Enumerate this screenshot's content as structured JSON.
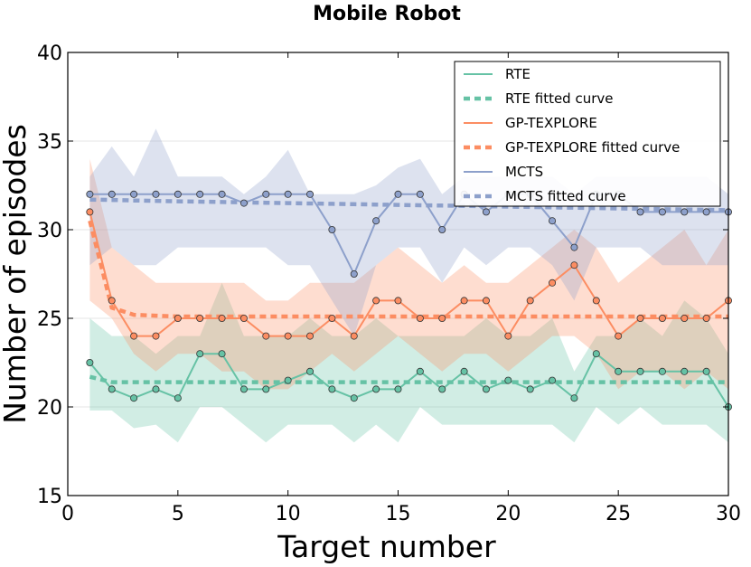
{
  "chart_data": {
    "type": "line",
    "title": "Mobile Robot",
    "xlabel": "Target number",
    "ylabel": "Number of episodes",
    "xlim": [
      0,
      30
    ],
    "ylim": [
      15,
      40
    ],
    "xticks": [
      0,
      5,
      10,
      15,
      20,
      25,
      30
    ],
    "yticks": [
      15,
      20,
      25,
      30,
      35,
      40
    ],
    "grid": "horizontal",
    "legend_position": "top-right",
    "x": [
      1,
      2,
      3,
      4,
      5,
      6,
      7,
      8,
      9,
      10,
      11,
      12,
      13,
      14,
      15,
      16,
      17,
      18,
      19,
      20,
      21,
      22,
      23,
      24,
      25,
      26,
      27,
      28,
      29,
      30
    ],
    "series": [
      {
        "name": "RTE",
        "color": "#66c2a5",
        "values": [
          22.5,
          21,
          20.5,
          21,
          20.5,
          23,
          23,
          21,
          21,
          21.5,
          22,
          21,
          20.5,
          21,
          21,
          22,
          21,
          22,
          21,
          21.5,
          21,
          21.5,
          20.5,
          23,
          22,
          22,
          22,
          22,
          22,
          20
        ],
        "upper": [
          25,
          24,
          24,
          23,
          24,
          24,
          27,
          24,
          24,
          24,
          25,
          24,
          24,
          25,
          24,
          24,
          24,
          24,
          25,
          24,
          24,
          25,
          22,
          24,
          24,
          25,
          24,
          26,
          25,
          23
        ],
        "lower": [
          19.8,
          19.8,
          18.8,
          19,
          18,
          20,
          20,
          19,
          18,
          19,
          19,
          19,
          18,
          19,
          18,
          20,
          19,
          19,
          19,
          19,
          19,
          19,
          18,
          20,
          19,
          20,
          19,
          19,
          19,
          18
        ],
        "fitted_name": "RTE fitted curve",
        "fitted": [
          21.7,
          21.4,
          21.4,
          21.4,
          21.4,
          21.4,
          21.4,
          21.4,
          21.4,
          21.4,
          21.4,
          21.4,
          21.4,
          21.4,
          21.4,
          21.4,
          21.4,
          21.4,
          21.4,
          21.4,
          21.4,
          21.4,
          21.4,
          21.4,
          21.4,
          21.4,
          21.4,
          21.4,
          21.4,
          21.4
        ]
      },
      {
        "name": "GP-TEXPLORE",
        "color": "#fc8d62",
        "values": [
          31,
          26,
          24,
          24,
          25,
          25,
          25,
          25,
          24,
          24,
          24,
          25,
          24,
          26,
          26,
          25,
          25,
          26,
          26,
          24,
          26,
          27,
          28,
          26,
          24,
          25,
          25,
          25,
          25,
          26
        ],
        "upper": [
          34,
          29,
          28,
          27,
          27,
          27,
          27,
          27,
          26,
          26,
          27,
          27,
          27,
          28,
          29,
          28,
          27,
          28,
          27,
          27,
          28,
          29,
          30,
          29,
          27,
          28,
          29,
          30,
          28,
          30
        ],
        "lower": [
          26,
          25,
          23,
          22,
          23,
          23,
          22,
          22,
          21,
          21,
          22,
          23,
          22,
          23,
          24,
          23,
          22,
          23,
          23,
          22,
          23,
          24,
          24,
          23,
          21,
          22,
          22,
          21,
          22,
          21
        ],
        "fitted_name": "GP-TEXPLORE fitted curve",
        "fitted": [
          30.5,
          25.6,
          25.2,
          25.15,
          25.1,
          25.1,
          25.1,
          25.1,
          25.1,
          25.1,
          25.1,
          25.1,
          25.1,
          25.1,
          25.1,
          25.1,
          25.1,
          25.1,
          25.1,
          25.1,
          25.1,
          25.1,
          25.1,
          25.1,
          25.1,
          25.1,
          25.1,
          25.1,
          25.1,
          25.1
        ]
      },
      {
        "name": "MCTS",
        "color": "#8da0cb",
        "values": [
          32,
          32,
          32,
          32,
          32,
          32,
          32,
          31.5,
          32,
          32,
          32,
          30,
          27.5,
          30.5,
          32,
          32,
          30,
          32,
          31,
          32,
          32,
          30.5,
          29,
          32,
          32,
          31,
          31,
          31,
          31,
          31
        ],
        "upper": [
          33,
          34.7,
          33,
          35.7,
          33,
          33,
          33,
          32,
          33,
          34.5,
          32,
          32,
          32,
          32.5,
          33.5,
          34,
          32,
          33,
          33,
          33,
          33,
          33,
          32,
          33,
          33,
          33,
          33,
          33,
          33,
          32
        ],
        "lower": [
          28,
          29,
          28,
          28,
          29,
          29,
          29,
          29,
          29,
          28,
          28,
          26,
          24,
          28,
          29,
          29,
          27,
          29,
          28,
          29,
          29,
          28,
          26,
          29,
          29,
          29,
          28,
          28,
          28,
          28
        ],
        "fitted_name": "MCTS fitted curve",
        "fitted": [
          31.7,
          31.68,
          31.65,
          31.63,
          31.6,
          31.58,
          31.56,
          31.54,
          31.52,
          31.5,
          31.48,
          31.46,
          31.44,
          31.42,
          31.4,
          31.38,
          31.36,
          31.34,
          31.32,
          31.3,
          31.28,
          31.26,
          31.24,
          31.22,
          31.2,
          31.18,
          31.16,
          31.14,
          31.12,
          31.1
        ]
      }
    ]
  }
}
